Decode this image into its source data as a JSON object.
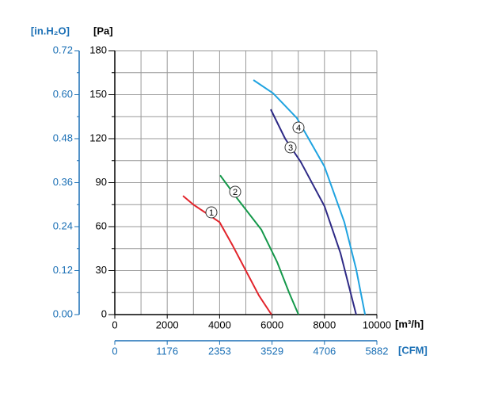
{
  "chart_data": {
    "type": "line",
    "y_label": "[Pa]",
    "y2_label": "[in.H₂O]",
    "x_label": "[m³/h]",
    "x2_label": "[CFM]",
    "xlim": [
      0,
      10000
    ],
    "xticks": [
      0,
      2000,
      4000,
      6000,
      8000,
      10000
    ],
    "xminorticks": [
      1000,
      3000,
      5000,
      7000,
      9000
    ],
    "ylim": [
      0,
      180
    ],
    "yticks": [
      0,
      30,
      60,
      90,
      120,
      150,
      180
    ],
    "yminorticks": [
      15,
      45,
      75,
      105,
      135,
      165
    ],
    "y2lim": [
      0,
      0.72
    ],
    "y2ticks": [
      {
        "value": 0,
        "label": "0.00"
      },
      0.12,
      0.24,
      0.36,
      0.48,
      {
        "value": 0.6,
        "label": "0.60"
      },
      0.72
    ],
    "y2minorticks": [
      0.06,
      0.18,
      0.3,
      0.42,
      0.54,
      0.66
    ],
    "x2lim": [
      0,
      5882
    ],
    "x2ticks": [
      0,
      1176,
      2353,
      3529,
      4706,
      5882
    ],
    "grid": true,
    "series": [
      {
        "name": "1",
        "color": "#e2242b",
        "x": [
          2600,
          3000,
          3500,
          4000,
          4500,
          5000,
          5500,
          5980
        ],
        "values": [
          81,
          75,
          69,
          63,
          47,
          30,
          13,
          0
        ]
      },
      {
        "name": "2",
        "color": "#14984a",
        "x": [
          4020,
          4680,
          5590,
          6190,
          6650,
          7010
        ],
        "values": [
          95,
          79,
          58,
          36,
          15,
          0
        ]
      },
      {
        "name": "3",
        "color": "#2e2a86",
        "x": [
          5950,
          6500,
          7100,
          8000,
          8610,
          9210
        ],
        "values": [
          140,
          120,
          104,
          74,
          42,
          0
        ]
      },
      {
        "name": "4",
        "color": "#1fa3e0",
        "x": [
          5290,
          6040,
          6950,
          8000,
          8760,
          9210,
          9550
        ],
        "values": [
          160,
          151,
          134,
          101,
          63,
          31,
          0
        ]
      }
    ]
  }
}
